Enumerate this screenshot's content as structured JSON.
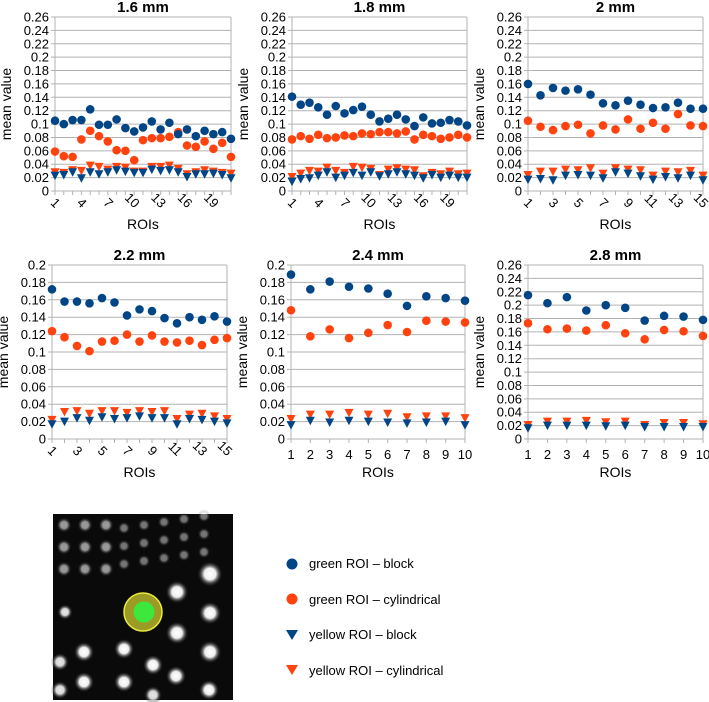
{
  "colors": {
    "block": "#004586",
    "cylindrical": "#ff420e",
    "grid": "#b3b3b3"
  },
  "legend": [
    {
      "label": "green ROI – block",
      "marker": "circle",
      "color": "#004586"
    },
    {
      "label": "green ROI – cylindrical",
      "marker": "circle",
      "color": "#ff420e"
    },
    {
      "label": "yellow ROI – block",
      "marker": "triangle-down",
      "color": "#004586"
    },
    {
      "label": "yellow ROI – cylindrical",
      "marker": "triangle-down",
      "color": "#ff420e"
    }
  ],
  "chart_data": [
    {
      "type": "scatter",
      "title": "1.6 mm",
      "xlabel": "ROIs",
      "ylabel": "mean value",
      "ylim": [
        0,
        0.26
      ],
      "ystep": 0.02,
      "n": 21,
      "xticks": [
        1,
        4,
        7,
        10,
        13,
        16,
        19
      ],
      "rotate_xticks": true,
      "yticks": [
        "0",
        "0.02",
        "0.04",
        "0.06",
        "0.08",
        "0.1",
        "0.12",
        "0.14",
        "0.16",
        "0.18",
        "0.2",
        "0.22",
        "0.24",
        "0.26"
      ],
      "series": [
        {
          "name": "green ROI – block",
          "values": [
            0.105,
            0.1,
            0.106,
            0.106,
            0.122,
            0.099,
            0.099,
            0.107,
            0.094,
            0.089,
            0.095,
            0.104,
            0.092,
            0.102,
            0.085,
            0.092,
            0.082,
            0.09,
            0.085,
            0.088,
            0.078
          ]
        },
        {
          "name": "green ROI – cylindrical",
          "values": [
            0.059,
            0.052,
            0.051,
            0.077,
            0.09,
            0.082,
            0.074,
            0.061,
            0.06,
            0.046,
            0.076,
            0.079,
            0.079,
            0.081,
            0.088,
            0.068,
            0.066,
            0.074,
            0.063,
            0.072,
            0.051
          ]
        },
        {
          "name": "yellow ROI – block",
          "values": [
            0.023,
            0.024,
            0.028,
            0.019,
            0.028,
            0.025,
            0.028,
            0.031,
            0.029,
            0.027,
            0.027,
            0.032,
            0.03,
            0.031,
            0.028,
            0.021,
            0.025,
            0.025,
            0.026,
            0.024,
            0.019
          ]
        },
        {
          "name": "yellow ROI – cylindrical",
          "values": [
            0.028,
            0.027,
            0.031,
            0.03,
            0.038,
            0.036,
            0.032,
            0.036,
            0.035,
            0.029,
            0.029,
            0.036,
            0.036,
            0.038,
            0.033,
            0.025,
            0.028,
            0.031,
            0.029,
            0.027,
            0.026
          ]
        }
      ]
    },
    {
      "type": "scatter",
      "title": "1.8 mm",
      "xlabel": "ROIs",
      "ylabel": "mean value",
      "ylim": [
        0,
        0.26
      ],
      "ystep": 0.02,
      "n": 21,
      "xticks": [
        1,
        4,
        7,
        10,
        13,
        16,
        19
      ],
      "rotate_xticks": true,
      "yticks": [
        "0",
        "0.02",
        "0.04",
        "0.06",
        "0.08",
        "0.1",
        "0.12",
        "0.14",
        "0.16",
        "0.18",
        "0.2",
        "0.22",
        "0.24",
        "0.26"
      ],
      "series": [
        {
          "name": "green ROI – block",
          "values": [
            0.141,
            0.129,
            0.132,
            0.125,
            0.114,
            0.127,
            0.116,
            0.121,
            0.126,
            0.114,
            0.104,
            0.108,
            0.114,
            0.107,
            0.097,
            0.11,
            0.101,
            0.102,
            0.106,
            0.104,
            0.098
          ]
        },
        {
          "name": "green ROI – cylindrical",
          "values": [
            0.077,
            0.082,
            0.078,
            0.084,
            0.079,
            0.08,
            0.083,
            0.082,
            0.086,
            0.085,
            0.088,
            0.088,
            0.086,
            0.089,
            0.077,
            0.084,
            0.082,
            0.078,
            0.08,
            0.084,
            0.08
          ]
        },
        {
          "name": "yellow ROI – block",
          "values": [
            0.014,
            0.018,
            0.019,
            0.023,
            0.028,
            0.02,
            0.023,
            0.027,
            0.023,
            0.028,
            0.022,
            0.025,
            0.028,
            0.025,
            0.023,
            0.019,
            0.024,
            0.02,
            0.023,
            0.02,
            0.02
          ]
        },
        {
          "name": "yellow ROI – cylindrical",
          "values": [
            0.021,
            0.026,
            0.03,
            0.029,
            0.035,
            0.03,
            0.027,
            0.036,
            0.035,
            0.033,
            0.024,
            0.032,
            0.034,
            0.032,
            0.031,
            0.022,
            0.027,
            0.025,
            0.029,
            0.025,
            0.026
          ]
        }
      ]
    },
    {
      "type": "scatter",
      "title": "2 mm",
      "xlabel": "ROIs",
      "ylabel": "mean value",
      "ylim": [
        0,
        0.26
      ],
      "ystep": 0.02,
      "n": 15,
      "xticks": [
        1,
        3,
        5,
        7,
        9,
        11,
        13,
        15
      ],
      "rotate_xticks": true,
      "yticks": [
        "0",
        "0.02",
        "0.04",
        "0.06",
        "0.08",
        "0.1",
        "0.12",
        "0.14",
        "0.16",
        "0.18",
        "0.2",
        "0.22",
        "0.24",
        "0.26"
      ],
      "series": [
        {
          "name": "green ROI – block",
          "values": [
            0.16,
            0.143,
            0.154,
            0.15,
            0.152,
            0.144,
            0.131,
            0.128,
            0.135,
            0.129,
            0.124,
            0.125,
            0.132,
            0.123,
            0.123
          ]
        },
        {
          "name": "green ROI – cylindrical",
          "values": [
            0.105,
            0.096,
            0.091,
            0.097,
            0.099,
            0.086,
            0.098,
            0.092,
            0.107,
            0.093,
            0.102,
            0.093,
            0.115,
            0.098,
            0.097
          ]
        },
        {
          "name": "yellow ROI – block",
          "values": [
            0.017,
            0.018,
            0.016,
            0.023,
            0.024,
            0.023,
            0.019,
            0.028,
            0.026,
            0.022,
            0.017,
            0.021,
            0.019,
            0.023,
            0.016
          ]
        },
        {
          "name": "yellow ROI – cylindrical",
          "values": [
            0.024,
            0.029,
            0.029,
            0.032,
            0.031,
            0.034,
            0.026,
            0.034,
            0.032,
            0.031,
            0.023,
            0.029,
            0.028,
            0.03,
            0.023
          ]
        }
      ]
    },
    {
      "type": "scatter",
      "title": "2.2 mm",
      "xlabel": "ROIs",
      "ylabel": "mean value",
      "ylim": [
        0,
        0.2
      ],
      "ystep": 0.02,
      "n": 15,
      "xticks": [
        1,
        3,
        5,
        7,
        9,
        11,
        13,
        15
      ],
      "rotate_xticks": true,
      "yticks": [
        "0",
        "0.02",
        "0.04",
        "0.06",
        "0.08",
        "0.1",
        "0.12",
        "0.14",
        "0.16",
        "0.18",
        "0.2"
      ],
      "series": [
        {
          "name": "green ROI – block",
          "values": [
            0.172,
            0.158,
            0.158,
            0.156,
            0.162,
            0.157,
            0.142,
            0.149,
            0.147,
            0.139,
            0.133,
            0.14,
            0.137,
            0.141,
            0.135
          ]
        },
        {
          "name": "green ROI – cylindrical",
          "values": [
            0.124,
            0.117,
            0.107,
            0.101,
            0.112,
            0.113,
            0.12,
            0.112,
            0.119,
            0.112,
            0.111,
            0.113,
            0.108,
            0.114,
            0.116
          ]
        },
        {
          "name": "yellow ROI – block",
          "values": [
            0.017,
            0.02,
            0.024,
            0.021,
            0.025,
            0.023,
            0.024,
            0.026,
            0.024,
            0.024,
            0.017,
            0.023,
            0.022,
            0.02,
            0.018
          ]
        },
        {
          "name": "yellow ROI – cylindrical",
          "values": [
            0.022,
            0.031,
            0.032,
            0.029,
            0.032,
            0.032,
            0.03,
            0.032,
            0.031,
            0.032,
            0.023,
            0.028,
            0.029,
            0.026,
            0.023
          ]
        }
      ]
    },
    {
      "type": "scatter",
      "title": "2.4 mm",
      "xlabel": "ROIs",
      "ylabel": "mean value",
      "ylim": [
        0,
        0.2
      ],
      "ystep": 0.02,
      "n": 10,
      "xticks": [
        1,
        2,
        3,
        4,
        5,
        6,
        7,
        8,
        9,
        10
      ],
      "rotate_xticks": false,
      "yticks": [
        "0",
        "0.02",
        "0.04",
        "0.06",
        "0.08",
        "0.1",
        "0.12",
        "0.14",
        "0.16",
        "0.18",
        "0.2"
      ],
      "series": [
        {
          "name": "green ROI – block",
          "values": [
            0.189,
            0.172,
            0.181,
            0.175,
            0.173,
            0.167,
            0.153,
            0.164,
            0.162,
            0.159
          ]
        },
        {
          "name": "green ROI – cylindrical",
          "values": [
            0.148,
            0.118,
            0.126,
            0.116,
            0.122,
            0.131,
            0.123,
            0.136,
            0.135,
            0.134
          ]
        },
        {
          "name": "yellow ROI – block",
          "values": [
            0.016,
            0.021,
            0.019,
            0.021,
            0.02,
            0.019,
            0.018,
            0.019,
            0.02,
            0.016
          ]
        },
        {
          "name": "yellow ROI – cylindrical",
          "values": [
            0.023,
            0.028,
            0.028,
            0.03,
            0.028,
            0.029,
            0.025,
            0.026,
            0.026,
            0.024
          ]
        }
      ]
    },
    {
      "type": "scatter",
      "title": "2.8  mm",
      "xlabel": "ROIs",
      "ylabel": "mean value",
      "ylim": [
        0,
        0.26
      ],
      "ystep": 0.02,
      "n": 10,
      "xticks": [
        1,
        2,
        3,
        4,
        5,
        6,
        7,
        8,
        9,
        10
      ],
      "rotate_xticks": false,
      "yticks": [
        "0",
        "0.02",
        "0.04",
        "0.06",
        "0.08",
        "0.1",
        "0.12",
        "0.14",
        "0.16",
        "0.18",
        "0.2",
        "0.22",
        "0.24",
        "0.26"
      ],
      "series": [
        {
          "name": "green ROI – block",
          "values": [
            0.215,
            0.203,
            0.212,
            0.192,
            0.2,
            0.196,
            0.177,
            0.184,
            0.183,
            0.178
          ]
        },
        {
          "name": "green ROI – cylindrical",
          "values": [
            0.173,
            0.164,
            0.165,
            0.162,
            0.17,
            0.158,
            0.149,
            0.163,
            0.161,
            0.154
          ]
        },
        {
          "name": "yellow ROI – block",
          "values": [
            0.016,
            0.02,
            0.02,
            0.02,
            0.019,
            0.02,
            0.018,
            0.018,
            0.018,
            0.018
          ]
        },
        {
          "name": "yellow ROI – cylindrical",
          "values": [
            0.021,
            0.026,
            0.026,
            0.027,
            0.025,
            0.026,
            0.021,
            0.024,
            0.024,
            0.022
          ]
        }
      ]
    }
  ]
}
